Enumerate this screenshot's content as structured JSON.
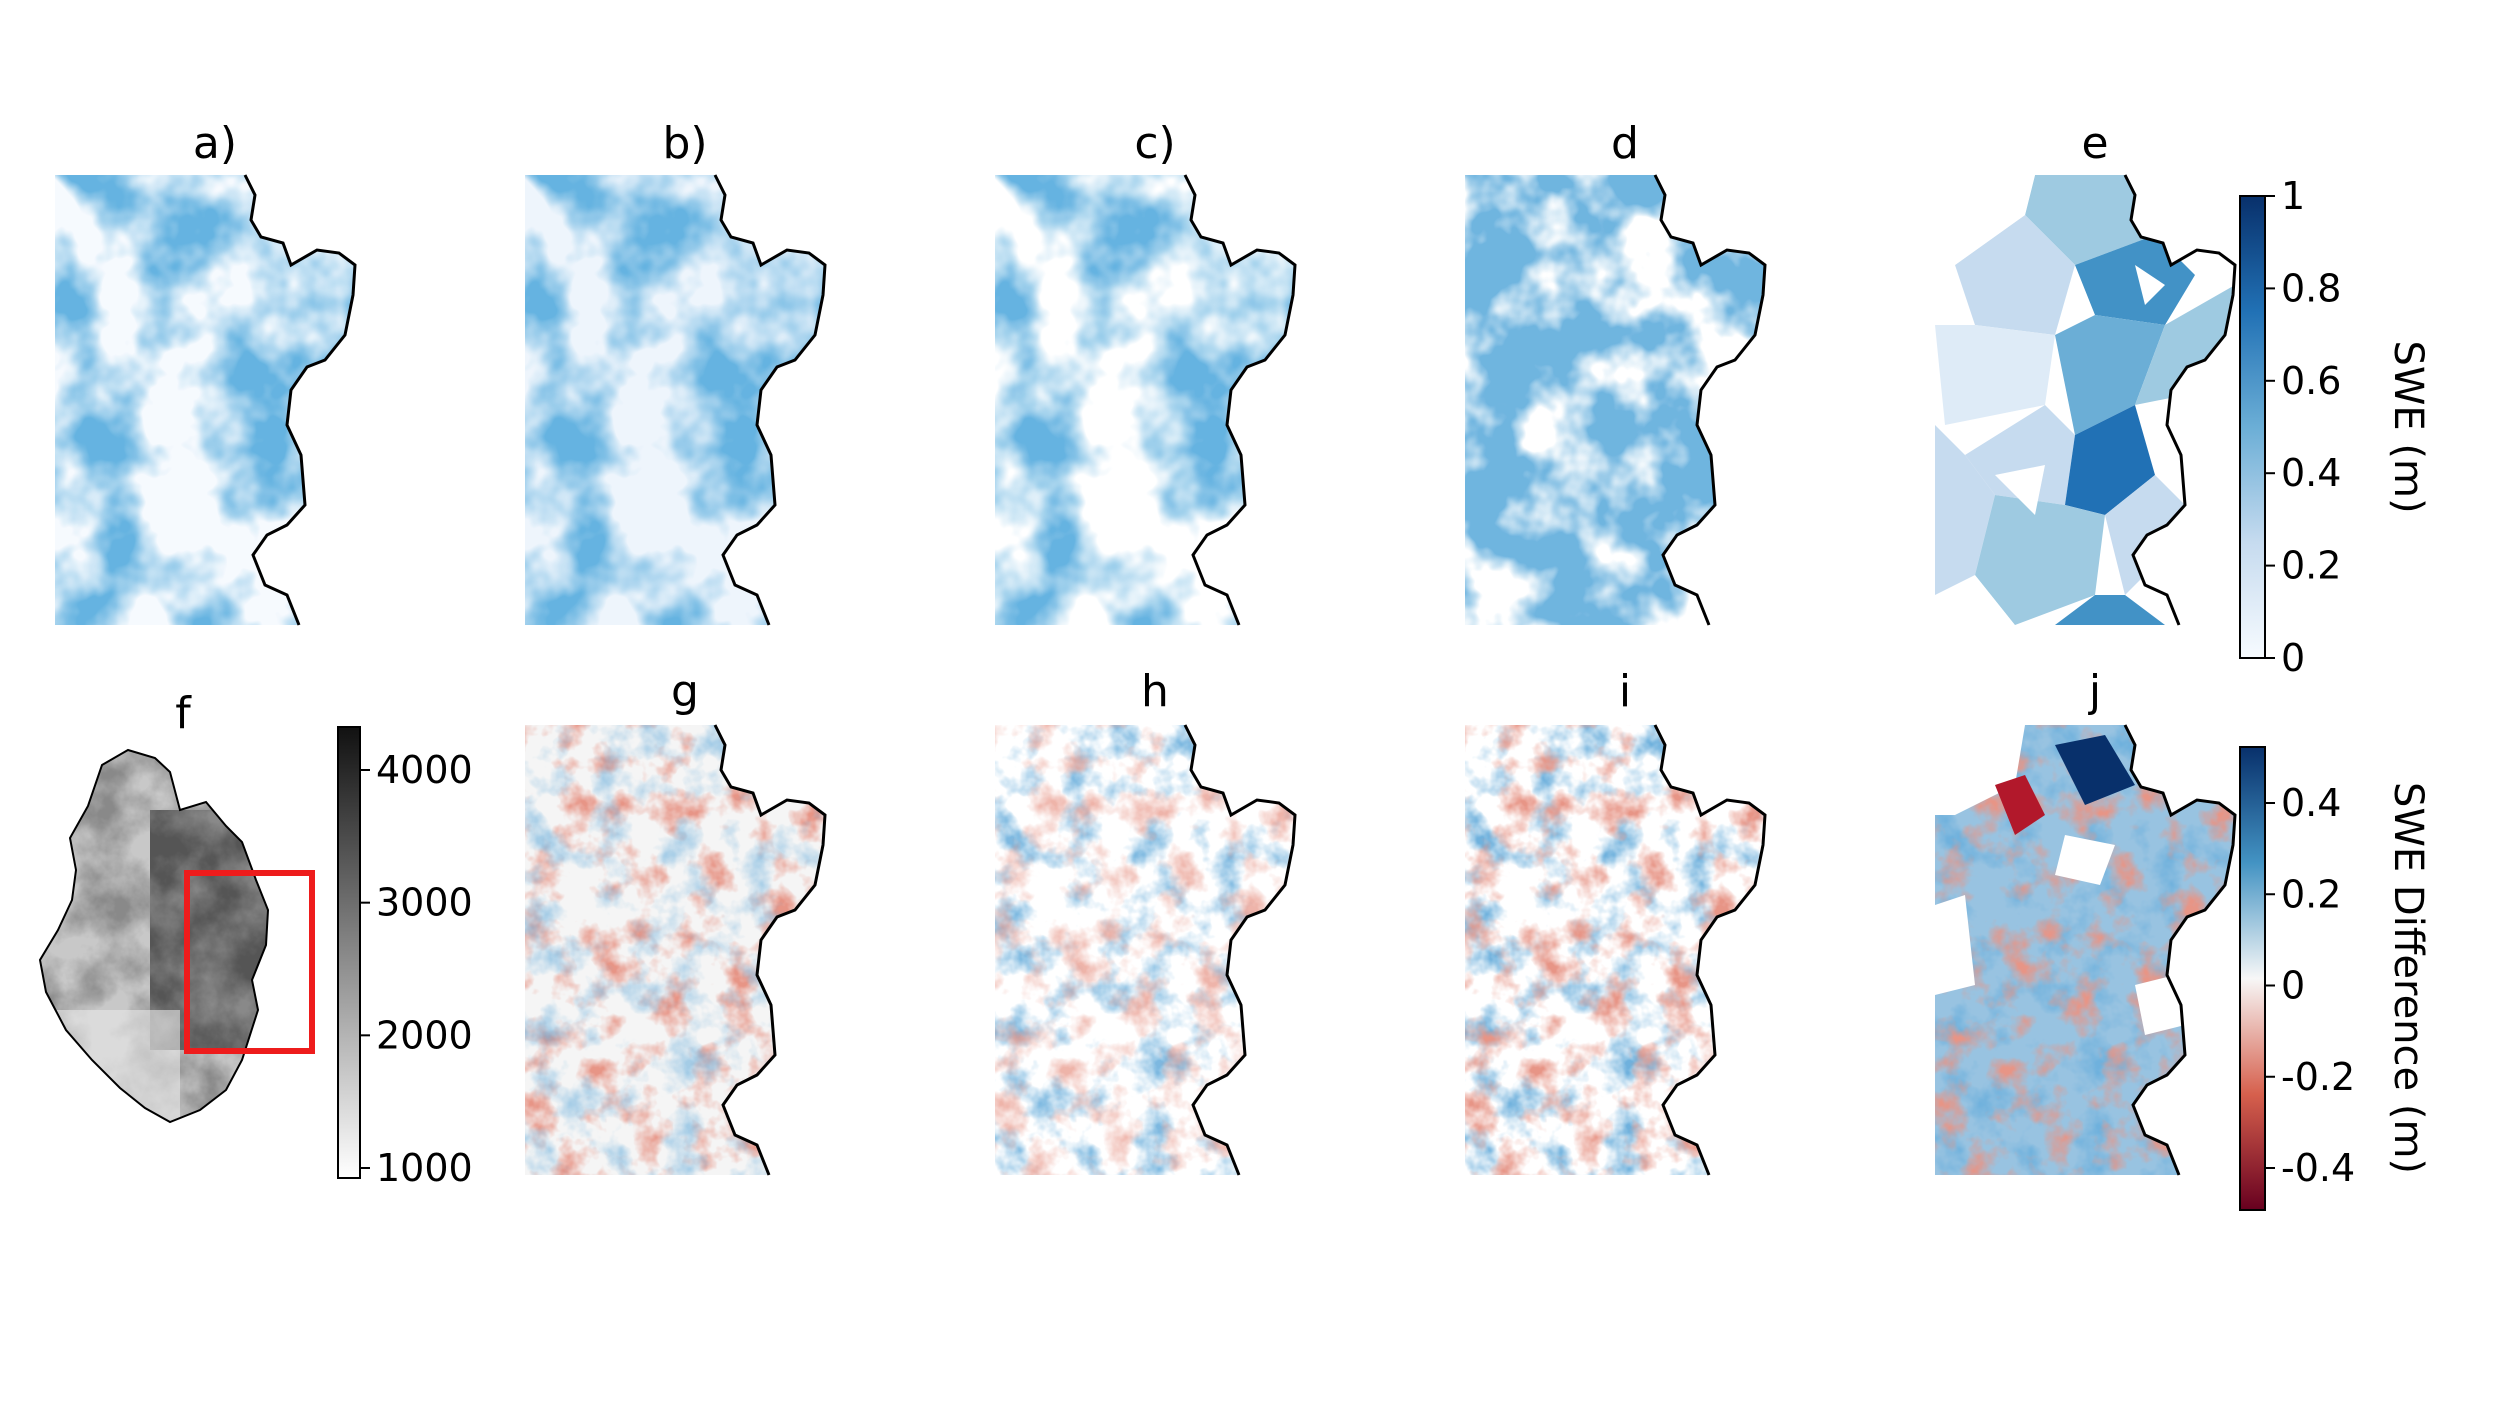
{
  "panel_labels": {
    "a": "a)",
    "b": "b)",
    "c": "c)",
    "d": "d",
    "e": "e",
    "f": "f",
    "g": "g",
    "h": "h",
    "i": "i",
    "j": "j"
  },
  "swe_colorbar": {
    "title": "SWE (m)",
    "ticks": [
      "1",
      "0.8",
      "0.6",
      "0.4",
      "0.2",
      "0"
    ],
    "color_top": "#08306b",
    "color_bottom": "#f7fbff"
  },
  "elevation_colorbar": {
    "ticks": [
      "4000",
      "3000",
      "2000",
      "1000"
    ],
    "color_top": "#111111",
    "color_bottom": "#ffffff"
  },
  "diff_colorbar": {
    "title": "SWE Difference (m)",
    "ticks": [
      "0.4",
      "0.2",
      "0",
      "-0.2",
      "-0.4"
    ],
    "color_top": "#08306b",
    "color_mid": "#f7f7f7",
    "color_bottom": "#67001f"
  },
  "colors": {
    "swe_blue": "#2171b5",
    "diff_red": "#d6604d",
    "boundary": "#000000",
    "inset_box": "#ee1c1c"
  }
}
